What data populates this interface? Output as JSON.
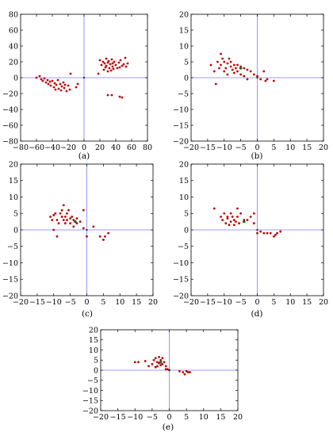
{
  "colors": {
    "frame": "#000000",
    "zero_line": "#7b7bff",
    "point": "#c00000",
    "highlight": "#1a6b1a"
  },
  "chart_data": [
    {
      "type": "scatter",
      "panel": "a",
      "caption": "(a)",
      "xlim": [
        -80,
        80
      ],
      "ylim": [
        -80,
        80
      ],
      "xticks": [
        "−80",
        "−60",
        "−40",
        "−20",
        "0",
        "20",
        "40",
        "60",
        "80"
      ],
      "yticks": [
        "80",
        "60",
        "40",
        "20",
        "0",
        "−20",
        "−40",
        "−60",
        "−80"
      ],
      "grid": false,
      "series": [
        {
          "x": [
            -60,
            -56,
            -54,
            -52,
            -50,
            -48,
            -46,
            -45,
            -43,
            -42,
            -40,
            -38,
            -37,
            -36,
            -35,
            -33,
            -32,
            -30,
            -29,
            -28,
            -26,
            -25,
            -24,
            -22,
            -20,
            -18,
            -17,
            -10,
            -8,
            18,
            20,
            22,
            24,
            25,
            26,
            27,
            28,
            28,
            30,
            30,
            31,
            32,
            33,
            34,
            35,
            36,
            36,
            37,
            38,
            40,
            42,
            44,
            45,
            46,
            48,
            50,
            52,
            53,
            55,
            30,
            35,
            45,
            48
          ],
          "y": [
            0,
            2,
            -2,
            -4,
            -1,
            -6,
            -3,
            -8,
            -5,
            -10,
            -4,
            -12,
            -7,
            -15,
            -9,
            -3,
            -14,
            -8,
            -16,
            -11,
            -6,
            -13,
            -9,
            -17,
            -10,
            -15,
            5,
            -12,
            -8,
            5,
            22,
            16,
            20,
            10,
            18,
            13,
            24,
            15,
            19,
            8,
            21,
            12,
            17,
            9,
            23,
            14,
            18,
            11,
            20,
            16,
            12,
            19,
            13,
            22,
            15,
            17,
            25,
            14,
            18,
            -22,
            -22,
            -24,
            -25
          ]
        }
      ]
    },
    {
      "type": "scatter",
      "panel": "b",
      "caption": "(b)",
      "xlim": [
        -20,
        20
      ],
      "ylim": [
        -20,
        20
      ],
      "xticks": [
        "−20",
        "−15",
        "−10",
        "−5",
        "0",
        "5",
        "10",
        "15",
        "20"
      ],
      "yticks": [
        "20",
        "15",
        "10",
        "5",
        "0",
        "−5",
        "−10",
        "−15",
        "−20"
      ],
      "grid": false,
      "series": [
        {
          "x": [
            -14,
            -13,
            -12.5,
            -12,
            -11.5,
            -11,
            -11,
            -10.5,
            -10,
            -10,
            -9.5,
            -9,
            -9,
            -8.5,
            -8,
            -8,
            -7.5,
            -7,
            -7,
            -6.5,
            -6,
            -6,
            -5,
            -5,
            -4,
            -4,
            -3,
            -3,
            -2,
            -1,
            0,
            1,
            2,
            2.5,
            3,
            5
          ],
          "y": [
            4,
            2,
            -2,
            5,
            3,
            7.5,
            4,
            6,
            2,
            5,
            3,
            4.5,
            1,
            6,
            3.5,
            5,
            2.5,
            4,
            1.5,
            3,
            4,
            2,
            3.5,
            1,
            3,
            0.5,
            2.5,
            -0.5,
            2,
            1,
            0.5,
            -0.5,
            2,
            -1,
            -0.5,
            -1
          ]
        }
      ],
      "highlight": [
        {
          "x": -5,
          "y": 3
        }
      ]
    },
    {
      "type": "scatter",
      "panel": "c",
      "caption": "(c)",
      "xlim": [
        -20,
        20
      ],
      "ylim": [
        -20,
        20
      ],
      "xticks": [
        "−20",
        "−15",
        "−10",
        "−5",
        "0",
        "5",
        "10",
        "15",
        "20"
      ],
      "yticks": [
        "20",
        "15",
        "10",
        "5",
        "0",
        "−5",
        "−10",
        "−15",
        "−20"
      ],
      "grid": false,
      "series": [
        {
          "x": [
            -11,
            -10.5,
            -10,
            -9.5,
            -9,
            -8.5,
            -8,
            -7.5,
            -7.5,
            -7,
            -7,
            -6.5,
            -6.5,
            -6,
            -6,
            -5.5,
            -5,
            -5,
            -4.5,
            -4,
            -4,
            -3,
            -3,
            -2,
            -1,
            -1,
            0,
            2,
            4,
            5,
            5.5,
            6.5,
            -10,
            -9
          ],
          "y": [
            4,
            3,
            4.5,
            5,
            3,
            2,
            5,
            4,
            6,
            3,
            7.5,
            4,
            2,
            5,
            3,
            6,
            3.5,
            2,
            4,
            3,
            1,
            3.5,
            2,
            2.5,
            6,
            0.5,
            -2,
            1,
            -2,
            -3,
            -2,
            -1,
            0,
            -2
          ]
        }
      ],
      "highlight": [
        {
          "x": -3.5,
          "y": 2.5
        }
      ]
    },
    {
      "type": "scatter",
      "panel": "d",
      "caption": "(d)",
      "xlim": [
        -20,
        20
      ],
      "ylim": [
        -20,
        20
      ],
      "xticks": [
        "−20",
        "−15",
        "−10",
        "−5",
        "0",
        "5",
        "10",
        "15",
        "20"
      ],
      "yticks": [
        "20",
        "15",
        "10",
        "5",
        "0",
        "−5",
        "−10",
        "−15",
        "−20"
      ],
      "grid": false,
      "series": [
        {
          "x": [
            -13,
            -11,
            -10.5,
            -10,
            -9.5,
            -9,
            -9,
            -8.5,
            -8,
            -8,
            -7.5,
            -7,
            -7,
            -6.5,
            -6,
            -6,
            -5.5,
            -5,
            -4,
            -3,
            -2,
            -1,
            -1,
            0,
            1,
            2,
            3,
            4,
            5,
            5.5,
            6,
            7
          ],
          "y": [
            6.5,
            4,
            3,
            5,
            2,
            4,
            3.5,
            1.5,
            5,
            2.5,
            4,
            1.5,
            3,
            2.5,
            6.5,
            4,
            2,
            5,
            3,
            3,
            4,
            5,
            2,
            -1,
            -0.5,
            -1,
            -1,
            -1,
            -2,
            -1.5,
            -1,
            -0.5
          ]
        }
      ],
      "highlight": [
        {
          "x": -4,
          "y": 2.5
        }
      ]
    },
    {
      "type": "scatter",
      "panel": "e",
      "caption": "(e)",
      "xlim": [
        -20,
        20
      ],
      "ylim": [
        -20,
        20
      ],
      "xticks": [
        "−20",
        "−15",
        "−10",
        "−5",
        "0",
        "5",
        "10",
        "15",
        "20"
      ],
      "yticks": [
        "20",
        "15",
        "10",
        "5",
        "0",
        "−5",
        "−10",
        "−15",
        "−20"
      ],
      "grid": false,
      "series": [
        {
          "x": [
            -10,
            -9,
            -7,
            -6,
            -5,
            -4.5,
            -4,
            -4,
            -3.5,
            -3.5,
            -3,
            -3,
            -2.5,
            -2.5,
            -2,
            -2,
            -1.5,
            -1,
            -1,
            -0.5,
            0,
            3,
            4,
            4.5,
            5,
            5.5,
            6
          ],
          "y": [
            4,
            4,
            4.5,
            2,
            3,
            5,
            6,
            1.5,
            4,
            2,
            6.5,
            3.5,
            5,
            2.5,
            6,
            3,
            4,
            0.5,
            2,
            0.5,
            0,
            -0.5,
            -1,
            -2,
            -0.5,
            -1,
            -1
          ]
        }
      ],
      "highlight": [
        {
          "x": -2.5,
          "y": 4
        }
      ]
    }
  ]
}
